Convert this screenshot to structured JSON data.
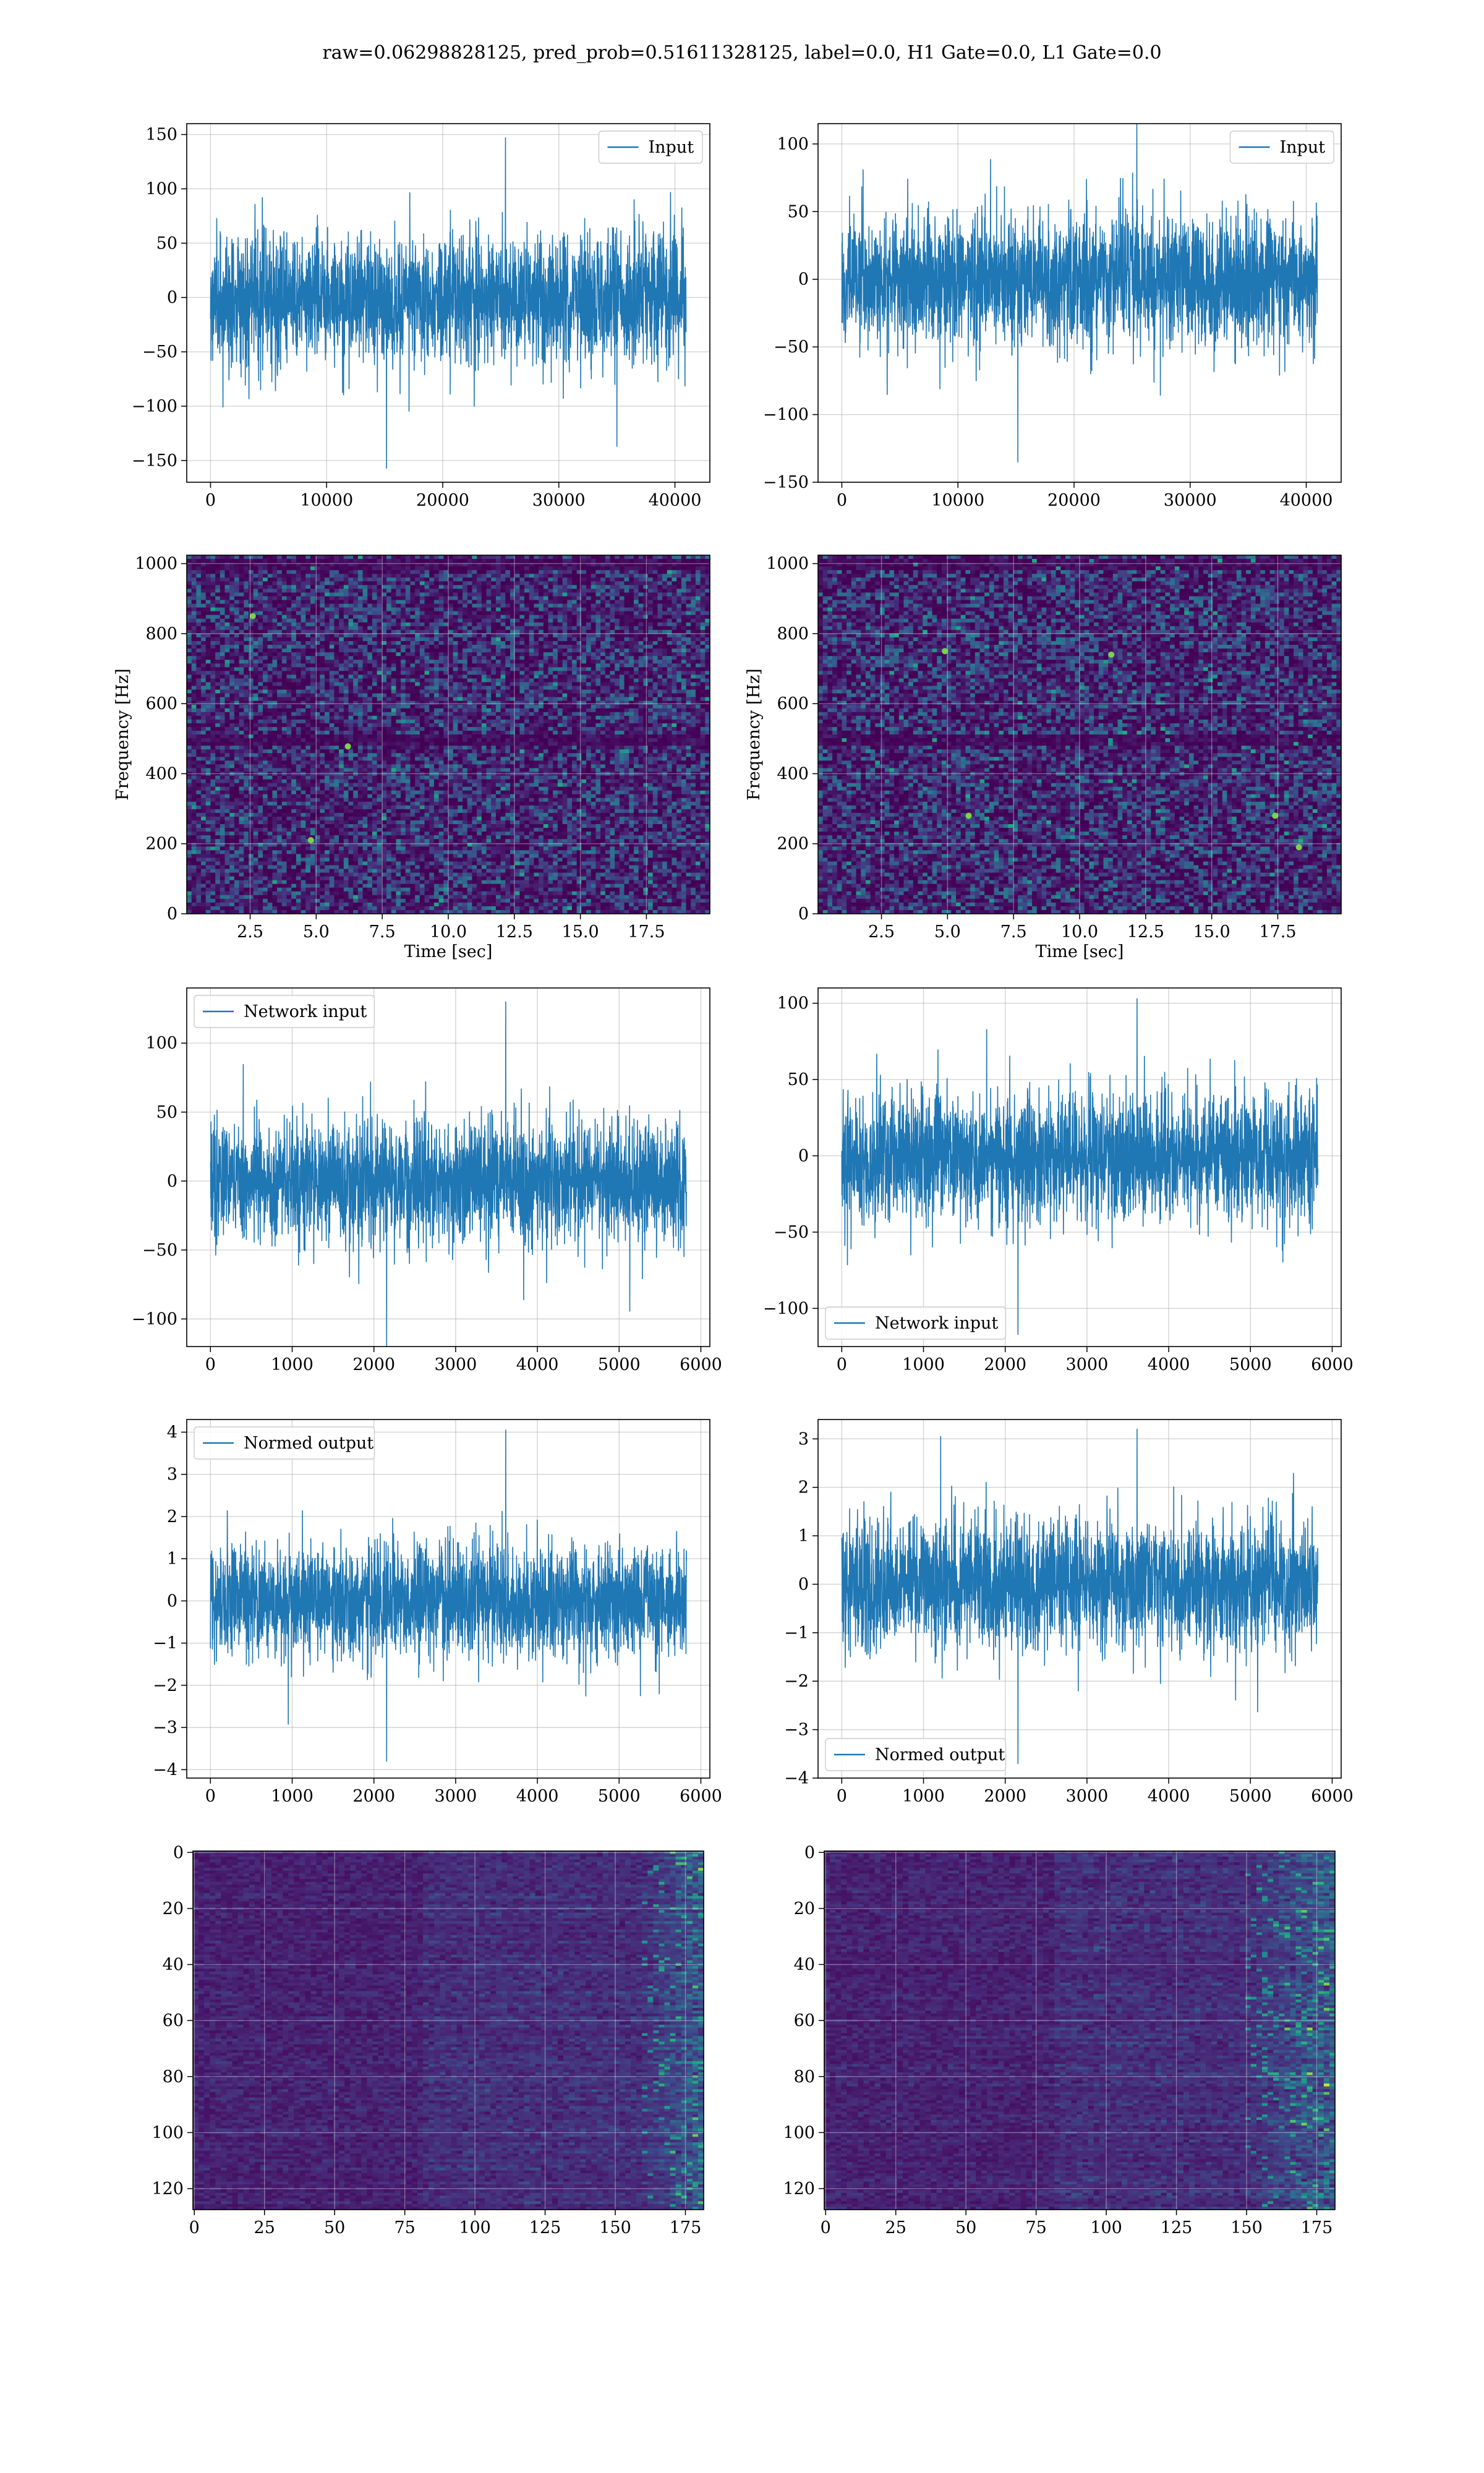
{
  "figure": {
    "suptitle": "raw=0.06298828125, pred_prob=0.51611328125, label=0.0, H1 Gate=0.0, L1 Gate=0.0"
  },
  "colors": {
    "series": "#1f77b4",
    "grid": "#b0b0b0",
    "viridis_low": "#440154",
    "viridis_high": "#fde725"
  },
  "chart_data": [
    {
      "id": "input-h1",
      "type": "line",
      "title": "",
      "xlabel": "",
      "ylabel": "",
      "xlim": [
        -2048,
        43008
      ],
      "ylim": [
        -170,
        160
      ],
      "xticks": [
        0,
        10000,
        20000,
        30000,
        40000
      ],
      "xtick_labels": [
        "0",
        "10000",
        "20000",
        "30000",
        "40000"
      ],
      "yticks": [
        -150,
        -100,
        -50,
        0,
        50,
        100,
        150
      ],
      "ytick_labels": [
        "−150",
        "−100",
        "−50",
        "0",
        "50",
        "100",
        "150"
      ],
      "grid": true,
      "legend": "upper right",
      "series": [
        {
          "name": "Input",
          "x_range": [
            0,
            40960
          ],
          "typical_amplitude": 38,
          "peak_max": 147,
          "peak_min": -157
        }
      ]
    },
    {
      "id": "input-l1",
      "type": "line",
      "title": "",
      "xlabel": "",
      "ylabel": "",
      "xlim": [
        -2048,
        43008
      ],
      "ylim": [
        -150,
        115
      ],
      "xticks": [
        0,
        10000,
        20000,
        30000,
        40000
      ],
      "xtick_labels": [
        "0",
        "10000",
        "20000",
        "30000",
        "40000"
      ],
      "yticks": [
        -150,
        -100,
        -50,
        0,
        50,
        100
      ],
      "ytick_labels": [
        "−150",
        "−100",
        "−50",
        "0",
        "50",
        "100"
      ],
      "grid": true,
      "legend": "upper right",
      "series": [
        {
          "name": "Input",
          "x_range": [
            0,
            40960
          ],
          "typical_amplitude": 30,
          "peak_max": 127,
          "peak_min": -135
        }
      ]
    },
    {
      "id": "spectrogram-h1",
      "type": "heatmap",
      "title": "",
      "xlabel": "Time [sec]",
      "ylabel": "Frequency [Hz]",
      "xlim": [
        0.1,
        19.9
      ],
      "ylim": [
        0,
        1024
      ],
      "xticks": [
        2.5,
        5.0,
        7.5,
        10.0,
        12.5,
        15.0,
        17.5
      ],
      "xtick_labels": [
        "2.5",
        "5.0",
        "7.5",
        "10.0",
        "12.5",
        "15.0",
        "17.5"
      ],
      "yticks": [
        0,
        200,
        400,
        600,
        800,
        1000
      ],
      "ytick_labels": [
        "0",
        "200",
        "400",
        "600",
        "800",
        "1000"
      ],
      "grid": true,
      "colormap": "viridis",
      "dark_bands_hz": [
        500,
        1000
      ],
      "bright_spots": [
        {
          "x": 6.2,
          "y": 478
        },
        {
          "x": 2.6,
          "y": 850
        },
        {
          "x": 4.8,
          "y": 210
        }
      ]
    },
    {
      "id": "spectrogram-l1",
      "type": "heatmap",
      "title": "",
      "xlabel": "Time [sec]",
      "ylabel": "Frequency [Hz]",
      "xlim": [
        0.1,
        19.9
      ],
      "ylim": [
        0,
        1024
      ],
      "xticks": [
        2.5,
        5.0,
        7.5,
        10.0,
        12.5,
        15.0,
        17.5
      ],
      "xtick_labels": [
        "2.5",
        "5.0",
        "7.5",
        "10.0",
        "12.5",
        "15.0",
        "17.5"
      ],
      "yticks": [
        0,
        200,
        400,
        600,
        800,
        1000
      ],
      "ytick_labels": [
        "0",
        "200",
        "400",
        "600",
        "800",
        "1000"
      ],
      "grid": true,
      "colormap": "viridis",
      "dark_bands_hz": [
        500,
        1000
      ],
      "bright_spots": [
        {
          "x": 5.8,
          "y": 280
        },
        {
          "x": 11.2,
          "y": 740
        },
        {
          "x": 18.3,
          "y": 190
        },
        {
          "x": 4.9,
          "y": 750
        },
        {
          "x": 17.4,
          "y": 280
        }
      ]
    },
    {
      "id": "network-input-h1",
      "type": "line",
      "title": "",
      "xlabel": "",
      "ylabel": "",
      "xlim": [
        -290,
        6110
      ],
      "ylim": [
        -120,
        140
      ],
      "xticks": [
        0,
        1000,
        2000,
        3000,
        4000,
        5000,
        6000
      ],
      "xtick_labels": [
        "0",
        "1000",
        "2000",
        "3000",
        "4000",
        "5000",
        "6000"
      ],
      "yticks": [
        -100,
        -50,
        0,
        50,
        100
      ],
      "ytick_labels": [
        "−100",
        "−50",
        "0",
        "50",
        "100"
      ],
      "grid": true,
      "legend": "upper left",
      "series": [
        {
          "name": "Network input",
          "x_range": [
            0,
            5825
          ],
          "typical_amplitude": 28,
          "peak_max": 130,
          "peak_min": -124
        }
      ]
    },
    {
      "id": "network-input-l1",
      "type": "line",
      "title": "",
      "xlabel": "",
      "ylabel": "",
      "xlim": [
        -290,
        6110
      ],
      "ylim": [
        -125,
        110
      ],
      "xticks": [
        0,
        1000,
        2000,
        3000,
        4000,
        5000,
        6000
      ],
      "xtick_labels": [
        "0",
        "1000",
        "2000",
        "3000",
        "4000",
        "5000",
        "6000"
      ],
      "yticks": [
        -100,
        -50,
        0,
        50,
        100
      ],
      "ytick_labels": [
        "−100",
        "−50",
        "0",
        "50",
        "100"
      ],
      "grid": true,
      "legend": "lower left",
      "series": [
        {
          "name": "Network input",
          "x_range": [
            0,
            5825
          ],
          "typical_amplitude": 26,
          "peak_max": 103,
          "peak_min": -117
        }
      ]
    },
    {
      "id": "normed-output-h1",
      "type": "line",
      "title": "",
      "xlabel": "",
      "ylabel": "",
      "xlim": [
        -290,
        6110
      ],
      "ylim": [
        -4.2,
        4.3
      ],
      "xticks": [
        0,
        1000,
        2000,
        3000,
        4000,
        5000,
        6000
      ],
      "xtick_labels": [
        "0",
        "1000",
        "2000",
        "3000",
        "4000",
        "5000",
        "6000"
      ],
      "yticks": [
        -4,
        -3,
        -2,
        -1,
        0,
        1,
        2,
        3,
        4
      ],
      "ytick_labels": [
        "−4",
        "−3",
        "−2",
        "−1",
        "0",
        "1",
        "2",
        "3",
        "4"
      ],
      "grid": true,
      "legend": "upper left",
      "series": [
        {
          "name": "Normed output",
          "x_range": [
            0,
            5825
          ],
          "typical_amplitude": 0.85,
          "peak_max": 4.05,
          "peak_min": -3.8
        }
      ]
    },
    {
      "id": "normed-output-l1",
      "type": "line",
      "title": "",
      "xlabel": "",
      "ylabel": "",
      "xlim": [
        -290,
        6110
      ],
      "ylim": [
        -4.0,
        3.4
      ],
      "xticks": [
        0,
        1000,
        2000,
        3000,
        4000,
        5000,
        6000
      ],
      "xtick_labels": [
        "0",
        "1000",
        "2000",
        "3000",
        "4000",
        "5000",
        "6000"
      ],
      "yticks": [
        -4,
        -3,
        -2,
        -1,
        0,
        1,
        2,
        3
      ],
      "ytick_labels": [
        "−4",
        "−3",
        "−2",
        "−1",
        "0",
        "1",
        "2",
        "3"
      ],
      "grid": true,
      "legend": "lower left",
      "series": [
        {
          "name": "Normed output",
          "x_range": [
            0,
            5825
          ],
          "typical_amplitude": 0.85,
          "peak_max": 3.2,
          "peak_min": -3.7
        }
      ]
    },
    {
      "id": "feature-map-h1",
      "type": "heatmap",
      "title": "",
      "xlabel": "",
      "ylabel": "",
      "xlim": [
        -0.5,
        181.5
      ],
      "ylim": [
        127.5,
        -0.5
      ],
      "rows": 128,
      "cols": 182,
      "xticks": [
        0,
        25,
        50,
        75,
        100,
        125,
        150,
        175
      ],
      "xtick_labels": [
        "0",
        "25",
        "50",
        "75",
        "100",
        "125",
        "150",
        "175"
      ],
      "yticks": [
        0,
        20,
        40,
        60,
        80,
        100,
        120
      ],
      "ytick_labels": [
        "0",
        "20",
        "40",
        "60",
        "80",
        "100",
        "120"
      ],
      "grid": true,
      "colormap": "viridis",
      "bright_columns_from": 160
    },
    {
      "id": "feature-map-l1",
      "type": "heatmap",
      "title": "",
      "xlabel": "",
      "ylabel": "",
      "xlim": [
        -0.5,
        181.5
      ],
      "ylim": [
        127.5,
        -0.5
      ],
      "rows": 128,
      "cols": 182,
      "xticks": [
        0,
        25,
        50,
        75,
        100,
        125,
        150,
        175
      ],
      "xtick_labels": [
        "0",
        "25",
        "50",
        "75",
        "100",
        "125",
        "150",
        "175"
      ],
      "yticks": [
        0,
        20,
        40,
        60,
        80,
        100,
        120
      ],
      "ytick_labels": [
        "0",
        "20",
        "40",
        "60",
        "80",
        "100",
        "120"
      ],
      "grid": true,
      "colormap": "viridis",
      "bright_columns_from": 150
    }
  ]
}
